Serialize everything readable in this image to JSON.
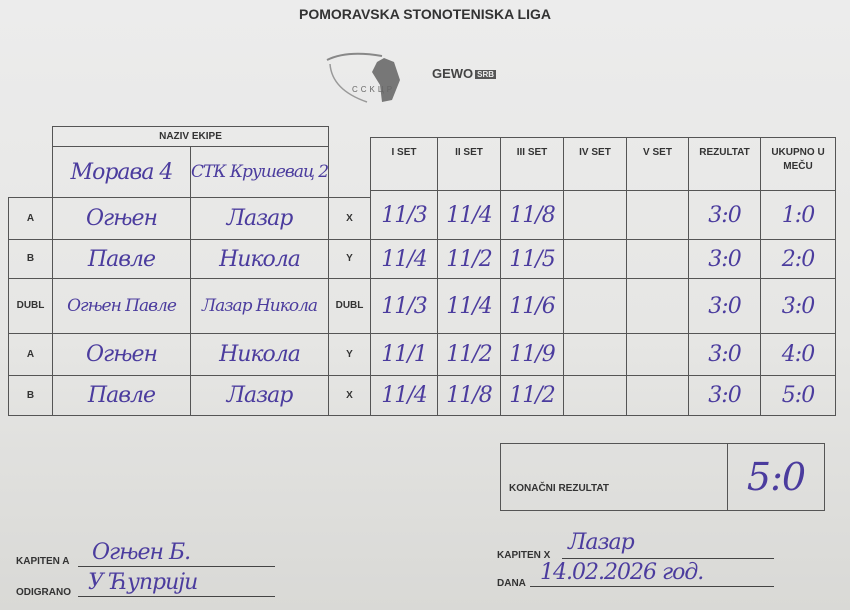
{
  "header": {
    "title": "POMORAVSKA STONOTENISKA LIGA",
    "logo_text": "CCKЦP",
    "sponsor": "GEWO",
    "sponsor_badge": "SRB"
  },
  "table": {
    "team_header": "NAZIV EKIPE",
    "team_a": "Морава 4",
    "team_x": "СТК Крушевац 2",
    "columns": [
      "I SET",
      "II SET",
      "III SET",
      "IV SET",
      "V SET",
      "REZULTAT",
      "UKUPNO U MEČU"
    ],
    "rows": [
      {
        "label": "A",
        "player_a": "Огњен",
        "player_x": "Лазар",
        "opp": "X",
        "sets": [
          "11/3",
          "11/4",
          "11/8",
          "",
          ""
        ],
        "result": "3:0",
        "total": "1:0"
      },
      {
        "label": "B",
        "player_a": "Павле",
        "player_x": "Никола",
        "opp": "Y",
        "sets": [
          "11/4",
          "11/2",
          "11/5",
          "",
          ""
        ],
        "result": "3:0",
        "total": "2:0"
      },
      {
        "label": "DUBL",
        "player_a": "Огњен Павле",
        "player_x": "Лазар Никола",
        "opp": "DUBL",
        "sets": [
          "11/3",
          "11/4",
          "11/6",
          "",
          ""
        ],
        "result": "3:0",
        "total": "3:0"
      },
      {
        "label": "A",
        "player_a": "Огњен",
        "player_x": "Никола",
        "opp": "Y",
        "sets": [
          "11/1",
          "11/2",
          "11/9",
          "",
          ""
        ],
        "result": "3:0",
        "total": "4:0"
      },
      {
        "label": "B",
        "player_a": "Павле",
        "player_x": "Лазар",
        "opp": "X",
        "sets": [
          "11/4",
          "11/8",
          "11/2",
          "",
          ""
        ],
        "result": "3:0",
        "total": "5:0"
      }
    ]
  },
  "final": {
    "label": "KONAČNI REZULTAT",
    "value": "5:0"
  },
  "footer": {
    "captain_a_label": "KAPITEN A",
    "captain_a": "Огњен Б.",
    "played_label": "ODIGRANO",
    "played": "У Ћуприји",
    "captain_x_label": "KAPITEN X",
    "captain_x": "Лазар",
    "date_label": "DANA",
    "date": "14.02.2026 год."
  }
}
